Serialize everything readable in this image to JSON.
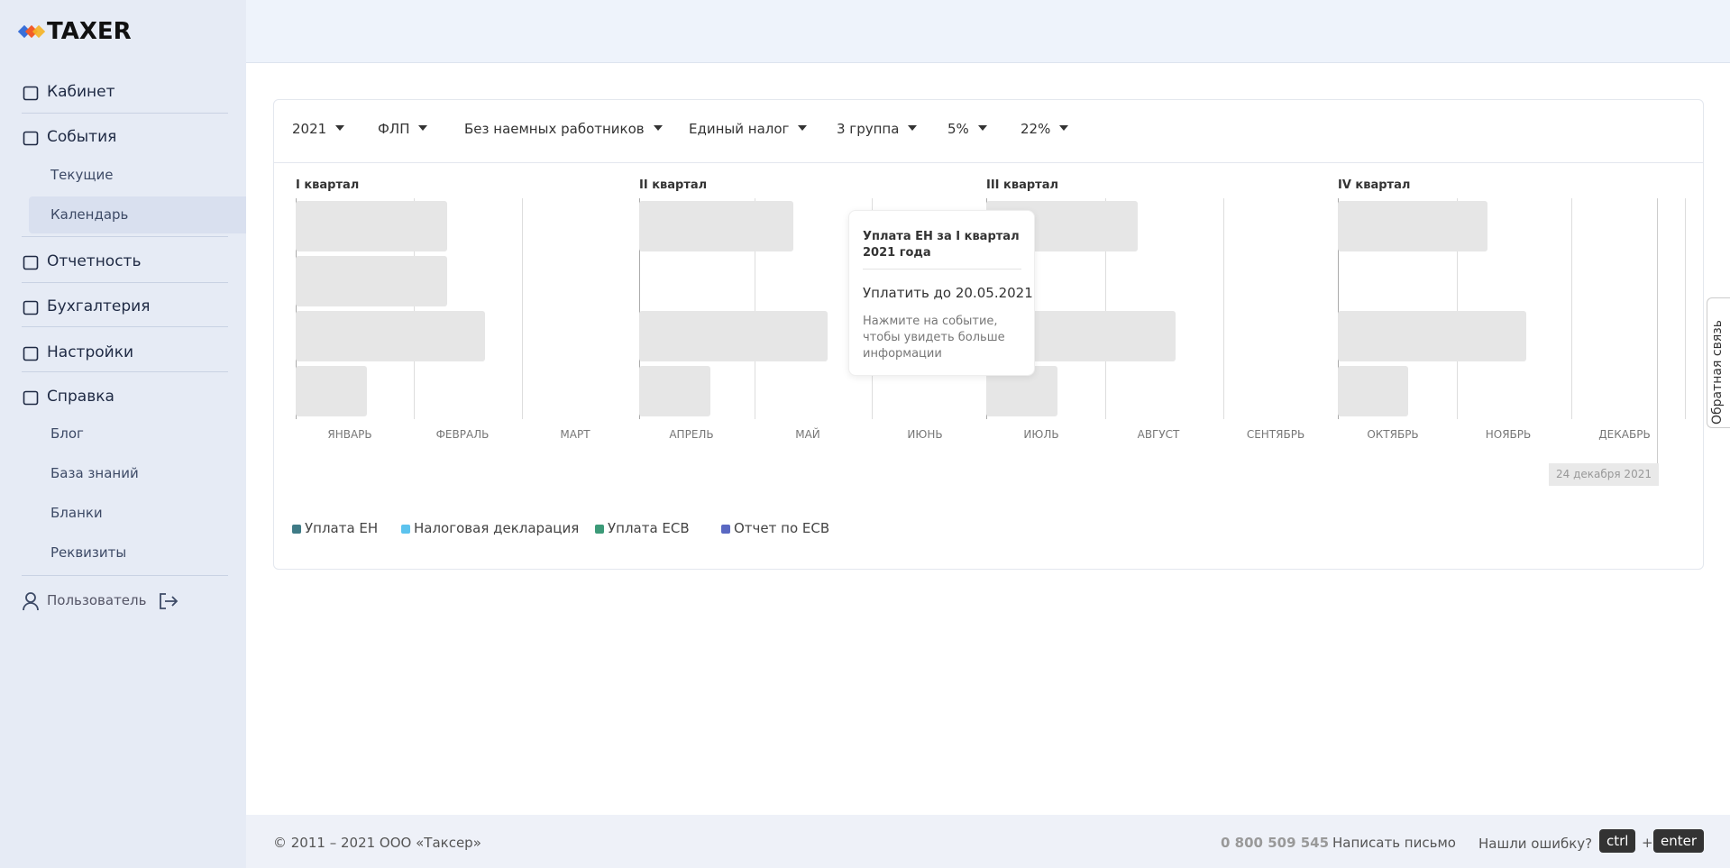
{
  "logo": "TAXER",
  "nav": [
    {
      "label": "Кабинет",
      "children": []
    },
    {
      "label": "События",
      "children": [
        "Текущие",
        "Календарь"
      ]
    },
    {
      "label": "Отчетность",
      "children": []
    },
    {
      "label": "Бухгалтерия",
      "children": []
    },
    {
      "label": "Настройки",
      "children": []
    },
    {
      "label": "Справка",
      "children": [
        "Блог",
        "База знаний",
        "Бланки",
        "Реквизиты"
      ]
    }
  ],
  "user": "Пользователь",
  "filters": [
    "2021",
    "ФЛП",
    "Без наемных работников",
    "Единый налог",
    "3 группа",
    "5%",
    "22%"
  ],
  "quarters": [
    "I квартал",
    "II квартал",
    "III квартал",
    "IV квартал"
  ],
  "months": [
    "ЯНВАРЬ",
    "ФЕВРАЛЬ",
    "МАРТ",
    "АПРЕЛЬ",
    "МАЙ",
    "ИЮНЬ",
    "ИЮЛЬ",
    "АВГУСТ",
    "СЕНТЯБРЬ",
    "ОКТЯБРЬ",
    "НОЯБРЬ",
    "ДЕКАБРЬ"
  ],
  "today": "24 декабря 2021",
  "tooltip": {
    "title": "Уплата ЕН за I квартал 2021 года",
    "due": "Уплатить до 20.05.2021",
    "hint": "Нажмите на событие, чтобы увидеть больше информации"
  },
  "legend": [
    {
      "label": "Уплата ЕН",
      "color": "#3f7b86"
    },
    {
      "label": "Налоговая декларация",
      "color": "#5cc3ee"
    },
    {
      "label": "Уплата ЕСВ",
      "color": "#3c9a78"
    },
    {
      "label": "Отчет по ЕСВ",
      "color": "#5a68c2"
    }
  ],
  "feedback": "Обратная связь",
  "footer": {
    "copyright": "© 2011 – 2021 ООО «Таксер»",
    "phone": "0 800 509 545",
    "mail": "Написать письмо",
    "error": "Нашли ошибку?",
    "key1": "ctrl",
    "plus": "+",
    "key2": "enter"
  }
}
